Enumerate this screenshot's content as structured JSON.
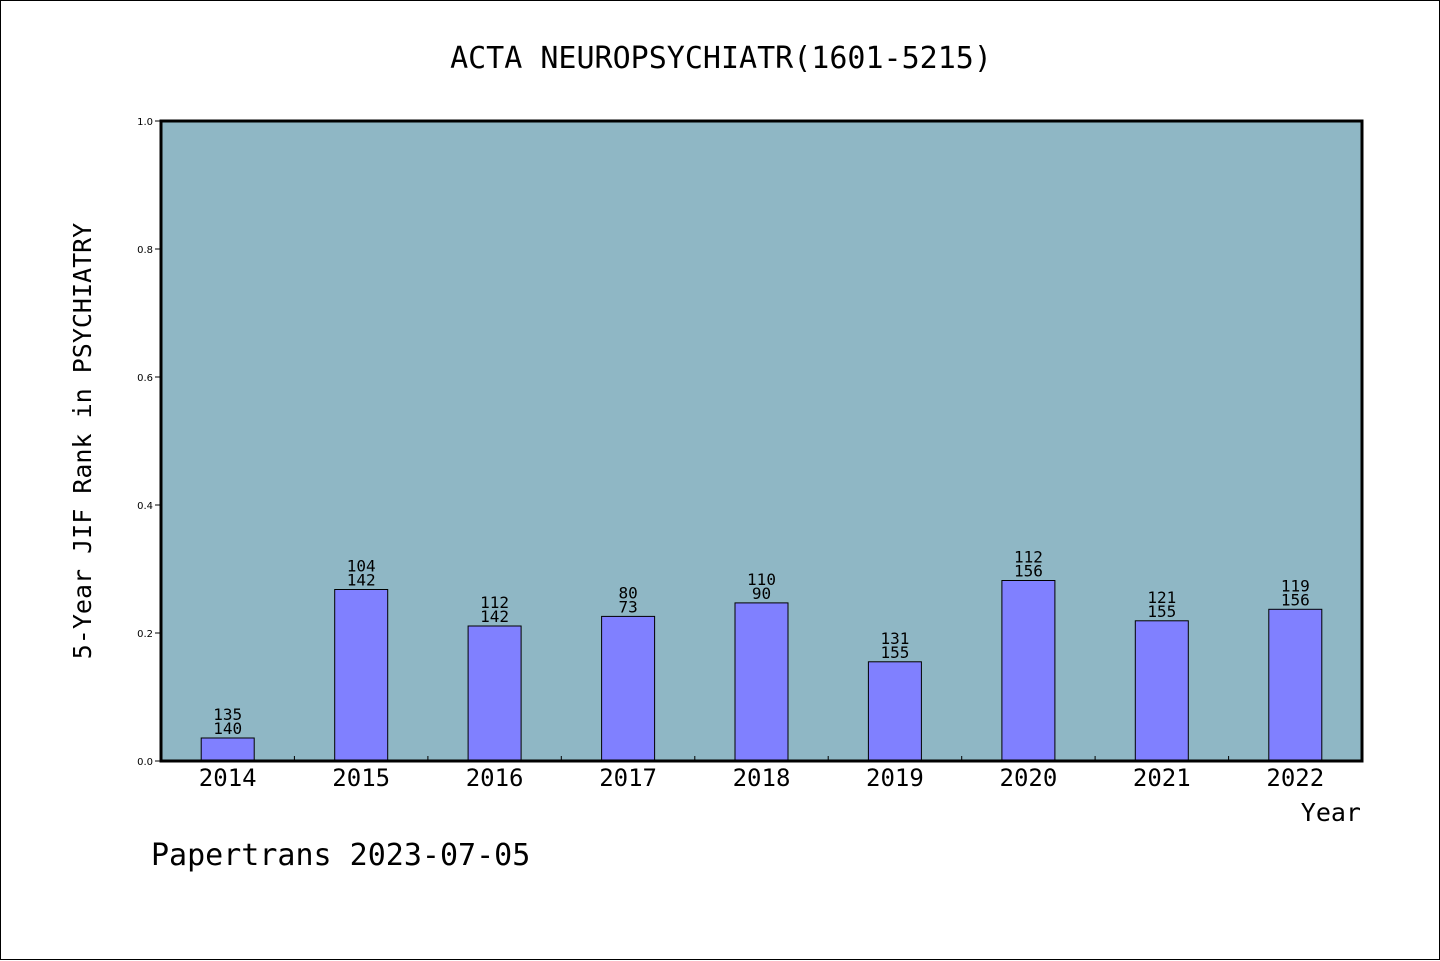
{
  "chart_data": {
    "type": "bar",
    "title": "ACTA NEUROPSYCHIATR(1601-5215)",
    "xlabel": "Year",
    "ylabel": "5-Year JIF Rank in PSYCHIATRY",
    "ylim": [
      0,
      1.0
    ],
    "yticks": [
      "0.0",
      "0.2",
      "0.4",
      "0.6",
      "0.8",
      "1.0"
    ],
    "grid": false,
    "categories": [
      "2014",
      "2015",
      "2016",
      "2017",
      "2018",
      "2019",
      "2020",
      "2021",
      "2022"
    ],
    "values": [
      0.036,
      0.268,
      0.211,
      0.226,
      0.247,
      0.155,
      0.282,
      0.219,
      0.237
    ],
    "rank": [
      "135",
      "104",
      "112",
      "80",
      "110",
      "131",
      "112",
      "121",
      "119"
    ],
    "total": [
      "140",
      "142",
      "142",
      "73",
      "90",
      "155",
      "156",
      "155",
      "156"
    ],
    "colors": {
      "plot_background": "#8fb7c5",
      "bar_fill": "#8080ff",
      "bar_stroke": "#000000"
    }
  },
  "footer": "Papertrans 2023-07-05"
}
